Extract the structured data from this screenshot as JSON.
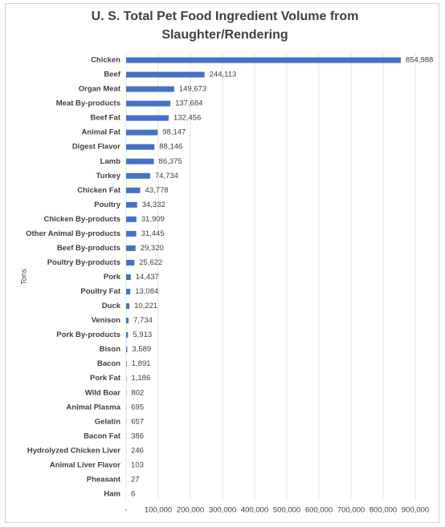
{
  "chart_data": {
    "type": "bar",
    "orientation": "horizontal",
    "title": [
      "U. S. Total Pet Food Ingredient Volume from",
      "Slaughter/Rendering"
    ],
    "y_label": "Tons",
    "categories": [
      "Chicken",
      "Beef",
      "Organ Meat",
      "Meat By-products",
      "Beef Fat",
      "Animal Fat",
      "Digest Flavor",
      "Lamb",
      "Turkey",
      "Chicken Fat",
      "Poultry",
      "Chicken By-products",
      "Other Animal By-products",
      "Beef By-products",
      "Poultry By-products",
      "Pork",
      "Poultry Fat",
      "Duck",
      "Venison",
      "Pork By-products",
      "Bison",
      "Bacon",
      "Pork Fat",
      "Wild Boar",
      "Animal Plasma",
      "Gelatin",
      "Bacon Fat",
      "Hydrolyzed Chicken Liver",
      "Animal Liver Flavor",
      "Pheasant",
      "Ham"
    ],
    "values": [
      854988,
      244113,
      149673,
      137684,
      132456,
      98147,
      88146,
      86375,
      74734,
      43778,
      34332,
      31909,
      31445,
      29320,
      25622,
      14437,
      13084,
      10221,
      7734,
      5913,
      3589,
      1891,
      1186,
      802,
      695,
      657,
      386,
      246,
      103,
      27,
      6
    ],
    "value_labels": [
      "854,988",
      "244,113",
      "149,673",
      "137,684",
      "132,456",
      "98,147",
      "88,146",
      "86,375",
      "74,734",
      "43,778",
      "34,332",
      "31,909",
      "31,445",
      "29,320",
      "25,622",
      "14,437",
      "13,084",
      "10,221",
      "7,734",
      "5,913",
      "3,589",
      "1,891",
      "1,186",
      "802",
      "695",
      "657",
      "386",
      "246",
      "103",
      "27",
      "6"
    ],
    "color": "#4472c4",
    "xlim": [
      0,
      900000
    ],
    "xticks": [
      {
        "value": 0,
        "label": "-"
      },
      {
        "value": 100000,
        "label": "100,000"
      },
      {
        "value": 200000,
        "label": "200,000"
      },
      {
        "value": 300000,
        "label": "300,000"
      },
      {
        "value": 400000,
        "label": "400,000"
      },
      {
        "value": 500000,
        "label": "500,000"
      },
      {
        "value": 600000,
        "label": "600,000"
      },
      {
        "value": 700000,
        "label": "700,000"
      },
      {
        "value": 800000,
        "label": "800,000"
      },
      {
        "value": 900000,
        "label": "900,000"
      }
    ],
    "grid": true
  }
}
